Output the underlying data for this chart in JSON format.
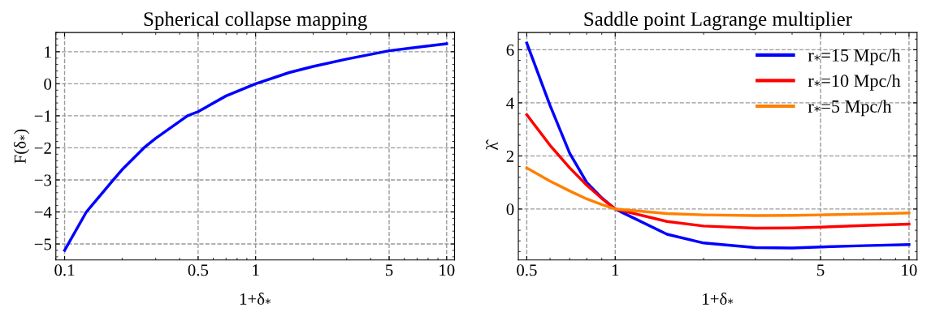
{
  "chart_data": [
    {
      "type": "line",
      "title": "Spherical collapse mapping",
      "xlabel": "1+δ$_{*}$",
      "ylabel": "F(δ$_{*}$)",
      "log": "x",
      "grid": true,
      "legend": false,
      "xlim": [
        0.09,
        11
      ],
      "ylim": [
        -5.5,
        1.6
      ],
      "xticks": [
        0.1,
        0.5,
        1,
        5,
        10
      ],
      "yticks": [
        -5,
        -4,
        -3,
        -2,
        -1,
        0,
        1
      ],
      "x": [
        0.1,
        0.13,
        0.18,
        0.2,
        0.26,
        0.3,
        0.44,
        0.5,
        0.7,
        1,
        1.5,
        2,
        3,
        5,
        10
      ],
      "series": [
        {
          "color": "#0000ff",
          "values": [
            -5.2,
            -4,
            -3,
            -2.68,
            -2,
            -1.7,
            -1,
            -0.87,
            -0.38,
            0,
            0.35,
            0.54,
            0.77,
            1.03,
            1.25
          ]
        }
      ]
    },
    {
      "type": "line",
      "title": "Saddle point Lagrange multiplier",
      "xlabel": "1+δ$_{*}$",
      "ylabel": "λ̂",
      "log": "x",
      "grid": true,
      "legend": "top right",
      "xlim": [
        0.468,
        10.65
      ],
      "ylim": [
        -1.92,
        6.65
      ],
      "xticks": [
        0.5,
        1,
        5,
        10
      ],
      "yticks": [
        0,
        2,
        4,
        6
      ],
      "x": [
        0.5,
        0.6,
        0.7,
        0.8,
        0.9,
        1,
        1.5,
        2,
        3,
        4,
        5,
        7,
        10
      ],
      "series": [
        {
          "name": "r$_{*}$=15 Mpc/h",
          "color": "#0000ff",
          "values": [
            6.25,
            3.9,
            2.1,
            1.0,
            0.42,
            0,
            -0.95,
            -1.28,
            -1.45,
            -1.47,
            -1.43,
            -1.38,
            -1.34
          ]
        },
        {
          "name": "r$_{*}$=10 Mpc/h",
          "color": "#ff0000",
          "values": [
            3.55,
            2.4,
            1.55,
            0.9,
            0.4,
            0,
            -0.47,
            -0.64,
            -0.72,
            -0.71,
            -0.68,
            -0.62,
            -0.57
          ]
        },
        {
          "name": "r$_{*}$=5 Mpc/h",
          "color": "#ff8000",
          "values": [
            1.55,
            1.05,
            0.68,
            0.38,
            0.17,
            0,
            -0.17,
            -0.22,
            -0.25,
            -0.24,
            -0.22,
            -0.19,
            -0.15
          ]
        }
      ]
    }
  ]
}
